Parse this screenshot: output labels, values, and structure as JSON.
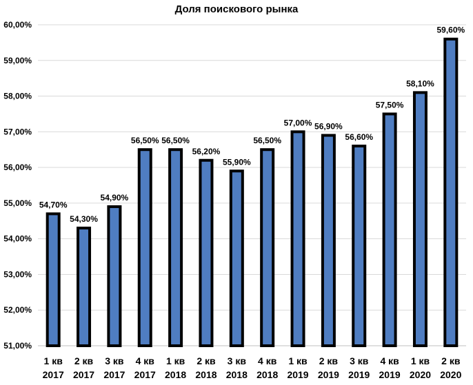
{
  "chart_data": {
    "type": "bar",
    "title": "Доля поискового рынка",
    "xlabel": "",
    "ylabel": "",
    "ylim": [
      51,
      60
    ],
    "yticks": [
      {
        "value": 51,
        "label": "51,00%"
      },
      {
        "value": 52,
        "label": "52,00%"
      },
      {
        "value": 53,
        "label": "53,00%"
      },
      {
        "value": 54,
        "label": "54,00%"
      },
      {
        "value": 55,
        "label": "55,00%"
      },
      {
        "value": 56,
        "label": "56,00%"
      },
      {
        "value": 57,
        "label": "57,00%"
      },
      {
        "value": 58,
        "label": "58,00%"
      },
      {
        "value": 59,
        "label": "59,00%"
      },
      {
        "value": 60,
        "label": "60,00%"
      }
    ],
    "categories": [
      {
        "line1": "1 кв",
        "line2": "2017"
      },
      {
        "line1": "2 кв",
        "line2": "2017"
      },
      {
        "line1": "3 кв",
        "line2": "2017"
      },
      {
        "line1": "4 кв",
        "line2": "2017"
      },
      {
        "line1": "1 кв",
        "line2": "2018"
      },
      {
        "line1": "2 кв",
        "line2": "2018"
      },
      {
        "line1": "3 кв",
        "line2": "2018"
      },
      {
        "line1": "4 кв",
        "line2": "2018"
      },
      {
        "line1": "1 кв",
        "line2": "2019"
      },
      {
        "line1": "2 кв",
        "line2": "2019"
      },
      {
        "line1": "3 кв",
        "line2": "2019"
      },
      {
        "line1": "4 кв",
        "line2": "2019"
      },
      {
        "line1": "1 кв",
        "line2": "2020"
      },
      {
        "line1": "2 кв",
        "line2": "2020"
      }
    ],
    "values": [
      54.7,
      54.3,
      54.9,
      56.5,
      56.5,
      56.2,
      55.9,
      56.5,
      57.0,
      56.9,
      56.6,
      57.5,
      58.1,
      59.6
    ],
    "data_labels": [
      "54,70%",
      "54,30%",
      "54,90%",
      "56,50%",
      "56,50%",
      "56,20%",
      "55,90%",
      "56,50%",
      "57,00%",
      "56,90%",
      "56,60%",
      "57,50%",
      "58,10%",
      "59,60%"
    ],
    "grid": true,
    "legend": "none",
    "colors": {
      "bar_fill": "#4f7dc1",
      "bar_stroke": "#000000",
      "grid": "#d9d9d9"
    }
  }
}
